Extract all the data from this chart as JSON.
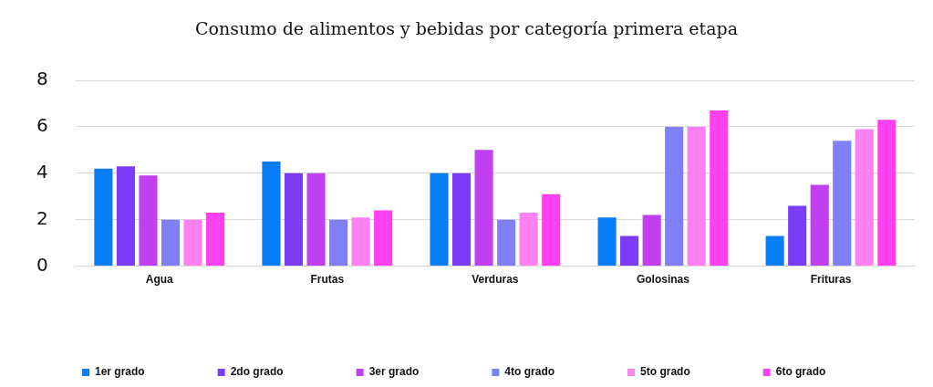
{
  "chart_data": {
    "type": "bar",
    "title": "Consumo de alimentos y bebidas por categoría primera etapa",
    "categories": [
      "Agua",
      "Frutas",
      "Verduras",
      "Golosinas",
      "Frituras"
    ],
    "series": [
      {
        "name": "1er grado",
        "color": "#0a7cf5",
        "values": [
          4.2,
          4.5,
          4,
          2.1,
          1.3
        ]
      },
      {
        "name": "2do grado",
        "color": "#7a3cf5",
        "values": [
          4.3,
          4,
          4,
          1.3,
          2.6
        ]
      },
      {
        "name": "3er grado",
        "color": "#c040f0",
        "values": [
          3.9,
          4,
          5,
          2.2,
          3.5
        ]
      },
      {
        "name": "4to grado",
        "color": "#7f7ff8",
        "values": [
          2,
          2,
          2,
          6,
          5.4
        ]
      },
      {
        "name": "5to grado",
        "color": "#ff80f0",
        "values": [
          2,
          2.1,
          2.3,
          6,
          5.9
        ]
      },
      {
        "name": "6to grado",
        "color": "#ff40f0",
        "values": [
          2.3,
          2.4,
          3.1,
          6.7,
          6.3
        ]
      }
    ],
    "ylim": [
      0,
      8
    ],
    "yticks": [
      0,
      2,
      4,
      6,
      8
    ],
    "grid": "y",
    "legend": "bottom"
  }
}
